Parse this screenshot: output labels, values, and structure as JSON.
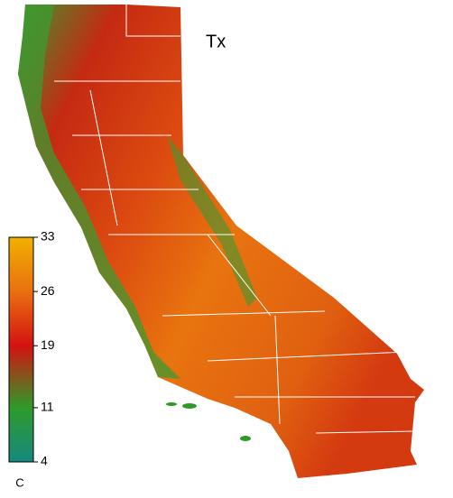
{
  "title": "Tx",
  "colorbar": {
    "label": "C",
    "range": [
      4,
      33
    ],
    "ticks": [
      4,
      11,
      19,
      26,
      33
    ],
    "colors": [
      "#15897e",
      "#2f9a2a",
      "#d41212",
      "#e9700f",
      "#f1b000"
    ]
  }
}
